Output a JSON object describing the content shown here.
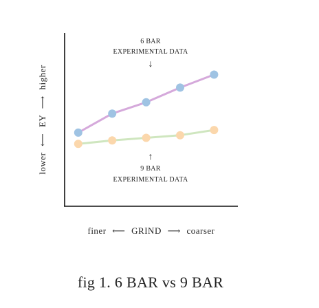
{
  "chart_data": {
    "type": "line",
    "x": [
      1,
      2,
      3,
      4,
      5
    ],
    "series": [
      {
        "name": "6 BAR EXPERIMENTAL DATA",
        "values": [
          4.25,
          5.35,
          6.0,
          6.85,
          7.6
        ],
        "line_color": "#d5a9db",
        "marker_color": "#9fc3e3"
      },
      {
        "name": "9 BAR EXPERIMENTAL DATA",
        "values": [
          3.6,
          3.8,
          3.95,
          4.1,
          4.4
        ],
        "line_color": "#cfe6bf",
        "marker_color": "#fbd7ac"
      }
    ],
    "xlim": [
      0.6,
      5.7
    ],
    "ylim": [
      0,
      10
    ],
    "xlabel": {
      "left": "finer",
      "arrow_left": "⟵",
      "center": "GRIND",
      "arrow_right": "⟶",
      "right": "coarser"
    },
    "ylabel": {
      "low": "lower",
      "arrow_low": "⟵",
      "center": "EY",
      "arrow_high": "⟶",
      "high": "higher"
    },
    "annotations": [
      {
        "line1": "6 BAR",
        "line2": "EXPERIMENTAL DATA",
        "arrow": "↓"
      },
      {
        "line1": "9 BAR",
        "line2": "EXPERIMENTAL DATA",
        "arrow": "↑"
      }
    ],
    "grid": false,
    "legend": "none",
    "caption": "fig 1. 6 BAR vs 9 BAR"
  }
}
